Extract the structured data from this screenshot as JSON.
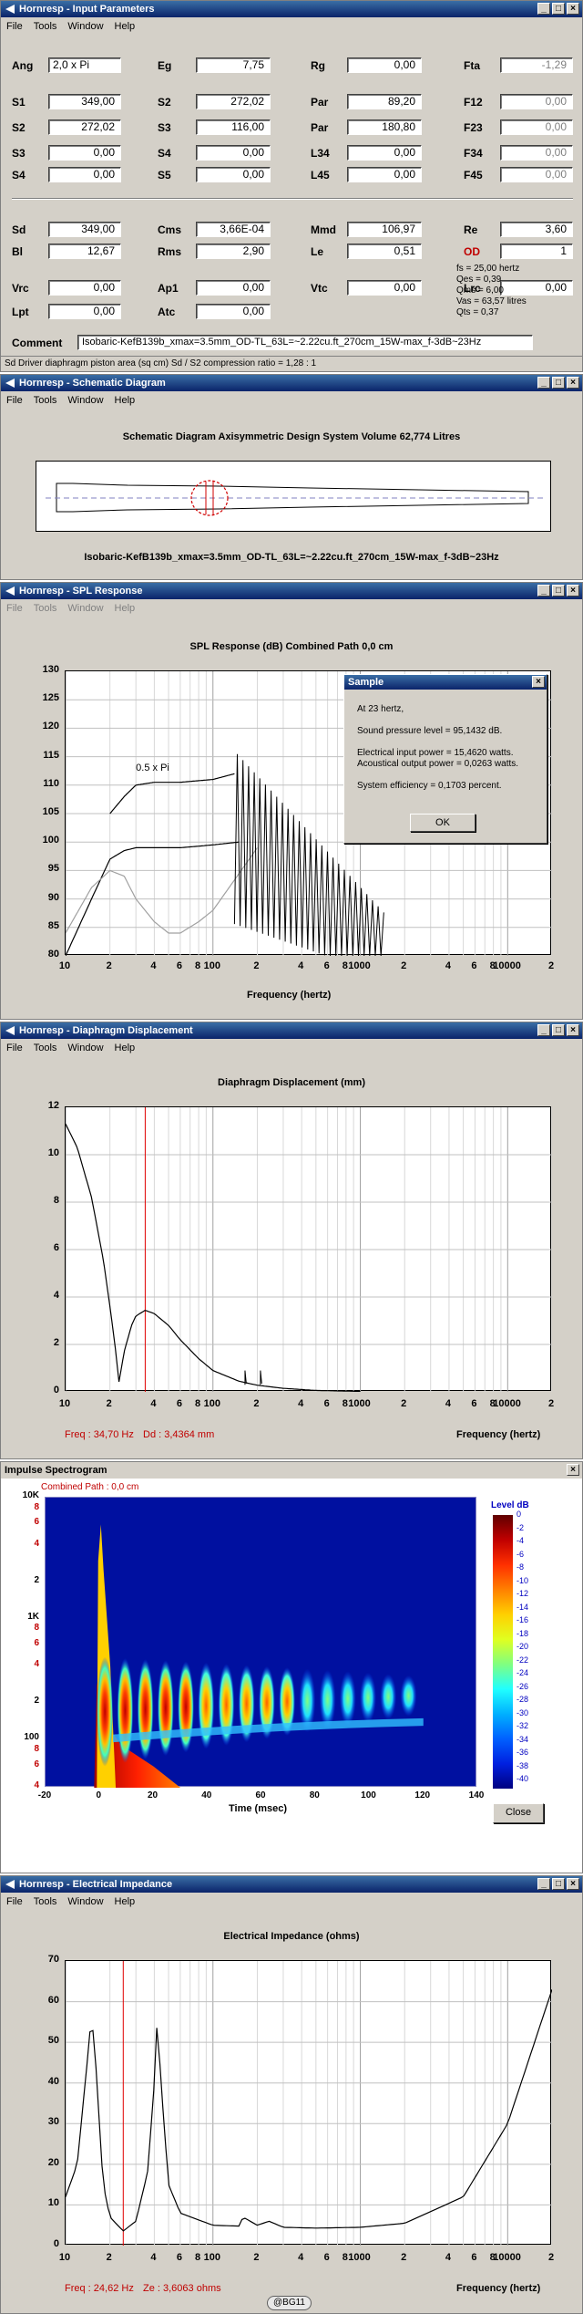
{
  "input_params": {
    "title": "Hornresp - Input Parameters",
    "menu": [
      "File",
      "Tools",
      "Window",
      "Help"
    ],
    "fields": [
      {
        "label": "Ang",
        "value": "2,0 x Pi",
        "align": "left"
      },
      {
        "label": "Eg",
        "value": "7,75"
      },
      {
        "label": "Rg",
        "value": "0,00"
      },
      {
        "label": "Fta",
        "value": "-1,29",
        "gray": true
      },
      {
        "label": "S1",
        "value": "349,00"
      },
      {
        "label": "S2",
        "value": "272,02"
      },
      {
        "label": "Par",
        "value": "89,20"
      },
      {
        "label": "F12",
        "value": "0,00",
        "gray": true
      },
      {
        "label": "S2",
        "value": "272,02"
      },
      {
        "label": "S3",
        "value": "116,00"
      },
      {
        "label": "Par",
        "value": "180,80"
      },
      {
        "label": "F23",
        "value": "0,00",
        "gray": true
      },
      {
        "label": "S3",
        "value": "0,00"
      },
      {
        "label": "S4",
        "value": "0,00"
      },
      {
        "label": "L34",
        "value": "0,00"
      },
      {
        "label": "F34",
        "value": "0,00",
        "gray": true
      },
      {
        "label": "S4",
        "value": "0,00"
      },
      {
        "label": "S5",
        "value": "0,00"
      },
      {
        "label": "L45",
        "value": "0,00"
      },
      {
        "label": "F45",
        "value": "0,00",
        "gray": true
      },
      {
        "label": "Sd",
        "value": "349,00"
      },
      {
        "label": "Cms",
        "value": "3,66E-04"
      },
      {
        "label": "Mmd",
        "value": "106,97"
      },
      {
        "label": "Re",
        "value": "3,60"
      },
      {
        "label": "Bl",
        "value": "12,67"
      },
      {
        "label": "Rms",
        "value": "2,90"
      },
      {
        "label": "Le",
        "value": "0,51"
      },
      {
        "label": "OD",
        "value": "1",
        "red": true
      },
      {
        "label": "Vrc",
        "value": "0,00"
      },
      {
        "label": "Ap1",
        "value": "0,00"
      },
      {
        "label": "Vtc",
        "value": "0,00"
      },
      {
        "label": "Lrc",
        "value": "0,00"
      },
      {
        "label": "Lpt",
        "value": "0,00"
      },
      {
        "label": "Atc",
        "value": "0,00"
      }
    ],
    "ts_info": [
      "fs = 25,00 hertz",
      "Qes = 0,39",
      "Qms = 6,00",
      "Vas = 63,57 litres",
      "Qts = 0,37"
    ],
    "comment_label": "Comment",
    "comment": "Isobaric-KefB139b_xmax=3.5mm_OD-TL_63L=~2.22cu.ft_270cm_15W-max_f-3dB~23Hz",
    "status": "Sd   Driver diaphragm piston area  (sq cm)   Sd / S2 compression ratio = 1,28 : 1"
  },
  "schematic": {
    "title": "Hornresp - Schematic Diagram",
    "menu": [
      "File",
      "Tools",
      "Window",
      "Help"
    ],
    "heading": "Schematic Diagram   Axisymmetric Design   System Volume 62,774 Litres",
    "caption": "Isobaric-KefB139b_xmax=3.5mm_OD-TL_63L=~2.22cu.ft_270cm_15W-max_f-3dB~23Hz"
  },
  "spl": {
    "title": "Hornresp - SPL Response",
    "menu": [
      "File",
      "Tools",
      "Window",
      "Help"
    ],
    "heading": "SPL Response (dB)   Combined   Path 0,0 cm",
    "yticks": [
      "130",
      "125",
      "120",
      "115",
      "110",
      "105",
      "100",
      "95",
      "90",
      "85",
      "80"
    ],
    "xticks": [
      "10",
      "2",
      "4",
      "6",
      "8",
      "100",
      "2",
      "4",
      "6",
      "8",
      "1000",
      "2",
      "4",
      "6",
      "8",
      "10000",
      "2"
    ],
    "xlabel": "Frequency (hertz)",
    "annotation": "0.5 x Pi",
    "dialog": {
      "title": "Sample",
      "lines": [
        "At 23 hertz,",
        "Sound pressure level = 95,1432 dB.",
        "Electrical input power = 15,4620 watts.",
        "Acoustical output power = 0,0263 watts.",
        "System efficiency = 0,1703 percent."
      ],
      "ok": "OK"
    }
  },
  "disp": {
    "title": "Hornresp - Diaphragm Displacement",
    "menu": [
      "File",
      "Tools",
      "Window",
      "Help"
    ],
    "heading": "Diaphragm Displacement (mm)",
    "yticks": [
      "12",
      "10",
      "8",
      "6",
      "4",
      "2",
      "0"
    ],
    "xticks": [
      "10",
      "2",
      "4",
      "6",
      "8",
      "100",
      "2",
      "4",
      "6",
      "8",
      "1000",
      "2",
      "4",
      "6",
      "8",
      "10000",
      "2"
    ],
    "xlabel": "Frequency (hertz)",
    "readout_freq": "Freq : 34,70 Hz",
    "readout_val": "Dd : 3,4364 mm"
  },
  "spectro": {
    "title": "Impulse Spectrogram",
    "header_left": "Combined    Path : 0,0 cm",
    "yticks": [
      "10K",
      "8",
      "6",
      "4",
      "2",
      "1K",
      "8",
      "6",
      "4",
      "2",
      "100",
      "8",
      "6",
      "4"
    ],
    "xticks": [
      "-20",
      "0",
      "20",
      "40",
      "60",
      "80",
      "100",
      "120",
      "140"
    ],
    "xlabel": "Time (msec)",
    "legend_title": "Level  dB",
    "legend_ticks": [
      "0",
      "-2",
      "-4",
      "-6",
      "-8",
      "-10",
      "-12",
      "-14",
      "-16",
      "-18",
      "-20",
      "-22",
      "-24",
      "-26",
      "-28",
      "-30",
      "-32",
      "-34",
      "-36",
      "-38",
      "-40"
    ],
    "close": "Close"
  },
  "imp": {
    "title": "Hornresp - Electrical Impedance",
    "menu": [
      "File",
      "Tools",
      "Window",
      "Help"
    ],
    "heading": "Electrical Impedance (ohms)",
    "yticks": [
      "70",
      "60",
      "50",
      "40",
      "30",
      "20",
      "10",
      "0"
    ],
    "xticks": [
      "10",
      "2",
      "4",
      "6",
      "8",
      "100",
      "2",
      "4",
      "6",
      "8",
      "1000",
      "2",
      "4",
      "6",
      "8",
      "10000",
      "2"
    ],
    "xlabel": "Frequency (hertz)",
    "readout_freq": "Freq : 24,62 Hz",
    "readout_val": "Ze : 3,6063 ohms",
    "watermark": "@BG11"
  },
  "chart_data": [
    {
      "type": "line",
      "title": "SPL Response (dB)   Combined   Path 0,0 cm",
      "xlabel": "Frequency (hertz)",
      "ylabel": "",
      "xscale": "log",
      "xlim": [
        10,
        20000
      ],
      "ylim": [
        80,
        130
      ],
      "series": [
        {
          "name": "0.5 x Pi",
          "x": [
            20,
            25,
            30,
            40,
            60,
            100,
            140
          ],
          "y": [
            105,
            108,
            110,
            110.5,
            110.5,
            111,
            112
          ]
        },
        {
          "x": [
            10,
            15,
            20,
            25,
            30,
            40,
            60,
            100,
            150
          ],
          "y": [
            80,
            90,
            97,
            98.5,
            99,
            99,
            99,
            99.5,
            100
          ]
        },
        {
          "x": [
            10,
            15,
            20,
            25,
            30,
            40,
            50,
            60,
            80,
            100,
            200
          ],
          "y": [
            84,
            92,
            95,
            94,
            90,
            86,
            84,
            84,
            86,
            88,
            99
          ]
        }
      ]
    },
    {
      "type": "line",
      "title": "Diaphragm Displacement (mm)",
      "xlabel": "Frequency (hertz)",
      "xscale": "log",
      "xlim": [
        10,
        20000
      ],
      "ylim": [
        0,
        12
      ],
      "series": [
        {
          "x": [
            10,
            12,
            15,
            18,
            20,
            22,
            23,
            25,
            28,
            30,
            34.7,
            40,
            50,
            60,
            80,
            100,
            150,
            200,
            300,
            500,
            1000
          ],
          "y": [
            11.3,
            10.3,
            8.2,
            5.6,
            3.6,
            1.6,
            0.4,
            1.7,
            2.8,
            3.2,
            3.44,
            3.3,
            2.8,
            2.2,
            1.4,
            0.9,
            0.45,
            0.28,
            0.15,
            0.06,
            0.02
          ]
        }
      ],
      "marker_x": 34.7
    },
    {
      "type": "heatmap",
      "title": "Impulse Spectrogram",
      "xlabel": "Time (msec)",
      "xlim": [
        -20,
        140
      ],
      "ylim": [
        40,
        10000
      ],
      "yscale": "log",
      "zlim": [
        -40,
        0
      ]
    },
    {
      "type": "line",
      "title": "Electrical Impedance (ohms)",
      "xlabel": "Frequency (hertz)",
      "xscale": "log",
      "xlim": [
        10,
        20000
      ],
      "ylim": [
        0,
        70
      ],
      "series": [
        {
          "x": [
            10,
            12,
            14,
            15,
            16,
            18,
            20,
            24.6,
            30,
            36,
            40,
            42,
            44,
            50,
            60,
            100,
            150,
            160,
            200,
            240,
            300,
            500,
            1000,
            2000,
            5000,
            10000,
            20000
          ],
          "y": [
            12,
            20,
            45,
            57,
            45,
            15,
            7,
            3.6,
            6,
            18,
            40,
            57,
            42,
            15,
            8,
            5,
            4.8,
            7,
            5,
            6,
            4.5,
            4.3,
            4.5,
            5.5,
            12,
            30,
            63
          ]
        }
      ],
      "marker_x": 24.62
    }
  ]
}
